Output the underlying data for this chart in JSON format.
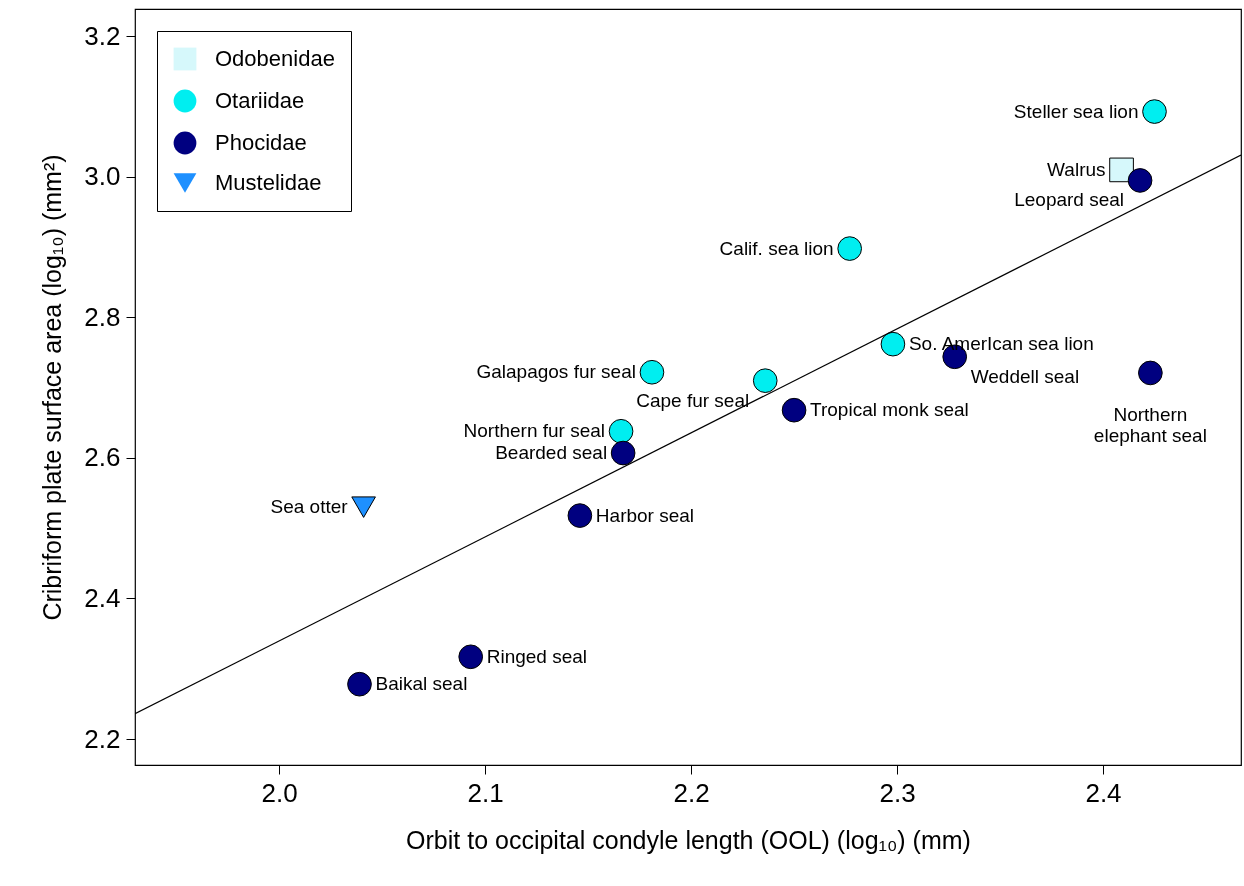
{
  "chart_data": {
    "type": "scatter",
    "xlabel": "Orbit to occipital condyle length (OOL) (log₁₀) (mm)",
    "ylabel": "Cribriform plate surface area (log₁₀) (mm²)",
    "xlim": [
      1.93,
      2.467
    ],
    "ylim": [
      2.163,
      3.239
    ],
    "xticks": [
      {
        "value": 2,
        "label": "2.0"
      },
      2.1,
      2.2,
      2.3,
      2.4
    ],
    "yticks": [
      2.2,
      2.4,
      2.6,
      2.8,
      {
        "value": 3,
        "label": "3.0"
      },
      3.2
    ],
    "grid": false,
    "legend": "top left",
    "series": [
      {
        "name": "Odobenidae",
        "color": "#d6f8fb",
        "marker": "square",
        "x": [
          2.409
        ],
        "values": [
          3.01
        ]
      },
      {
        "name": "Otariidae",
        "color": "#00eef0",
        "marker": "circle",
        "x": [
          2.425,
          2.277,
          2.298,
          2.181,
          2.236,
          2.166
        ],
        "values": [
          3.093,
          2.898,
          2.762,
          2.722,
          2.71,
          2.638
        ]
      },
      {
        "name": "Phocidae",
        "color": "#000080",
        "marker": "circle",
        "x": [
          2.418,
          2.328,
          2.423,
          2.25,
          2.167,
          2.146,
          2.093,
          2.039
        ],
        "values": [
          2.995,
          2.744,
          2.721,
          2.668,
          2.607,
          2.518,
          2.317,
          2.278
        ]
      },
      {
        "name": "Mustelidae",
        "color": "#1e90ff",
        "marker": "triangle",
        "x": [
          2.041
        ],
        "values": [
          2.53
        ]
      },
      {
        "type": "line",
        "color": "#000000",
        "x": [
          1.93,
          2.467
        ],
        "values": [
          2.236,
          3.031
        ]
      }
    ],
    "annotations": [
      {
        "text": "Steller sea lion",
        "x": 2.425,
        "y": 3.093
      },
      {
        "text": "Walrus",
        "x": 2.409,
        "y": 3.01
      },
      {
        "text": "Leopard seal",
        "x": 2.418,
        "y": 2.995
      },
      {
        "text": "Calif. sea lion",
        "x": 2.277,
        "y": 2.898
      },
      {
        "text": "So. AmerIcan sea lion",
        "x": 2.298,
        "y": 2.762
      },
      {
        "text": "Weddell seal",
        "x": 2.328,
        "y": 2.744
      },
      {
        "text": "Galapagos fur seal",
        "x": 2.181,
        "y": 2.722
      },
      {
        "text": "Cape fur seal",
        "x": 2.236,
        "y": 2.71
      },
      {
        "text": "Northern elephant seal",
        "x": 2.423,
        "y": 2.721
      },
      {
        "text": "Tropical monk seal",
        "x": 2.25,
        "y": 2.668
      },
      {
        "text": "Northern fur seal",
        "x": 2.166,
        "y": 2.638
      },
      {
        "text": "Bearded seal",
        "x": 2.167,
        "y": 2.607
      },
      {
        "text": "Sea otter",
        "x": 2.041,
        "y": 2.53
      },
      {
        "text": "Harbor seal",
        "x": 2.146,
        "y": 2.518
      },
      {
        "text": "Ringed seal",
        "x": 2.093,
        "y": 2.317
      },
      {
        "text": "Baikal seal",
        "x": 2.039,
        "y": 2.278
      }
    ]
  }
}
